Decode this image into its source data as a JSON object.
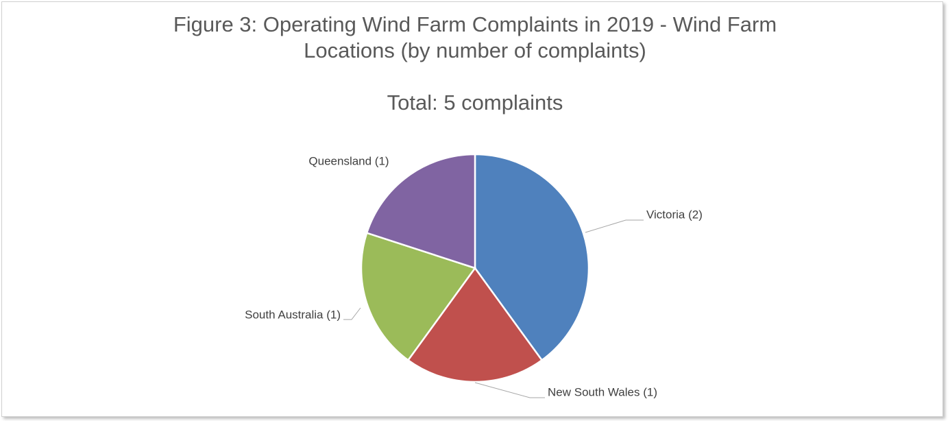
{
  "chart_data": {
    "type": "pie",
    "title": "Figure 3: Operating Wind Farm Complaints in 2019 - Wind Farm Locations (by number of complaints)",
    "subtitle": "Total: 5 complaints",
    "values": [
      2,
      1,
      1,
      1
    ],
    "value_labels": [
      "Victoria (2)",
      "New South Wales (1)",
      "South Australia (1)",
      "Queensland (1)"
    ],
    "colors": [
      "#4f81bd",
      "#c0504d",
      "#9bbb59",
      "#8064a2"
    ]
  }
}
